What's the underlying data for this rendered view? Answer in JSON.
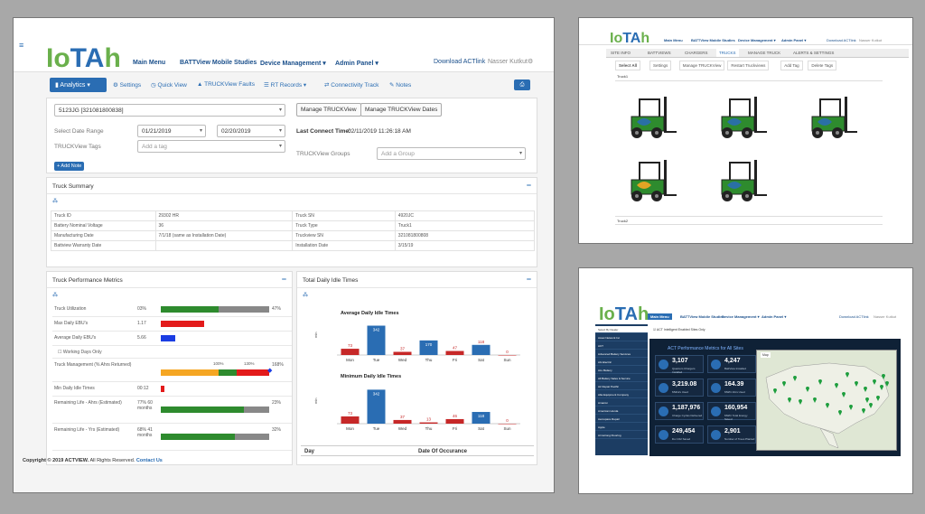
{
  "main": {
    "logo": {
      "text1": "Io",
      "text2": "TA",
      "text3": "h"
    },
    "nav": [
      "Main Menu",
      "BATTView Mobile Studies",
      "Device Management ▾",
      "Admin Panel ▾"
    ],
    "download_link": "Download ACTlink",
    "user": "Nasser Kutkut",
    "tabs": {
      "analytics": "Analytics ▾",
      "settings": "Settings",
      "quick_view": "Quick View",
      "faults": "TRUCKView Faults",
      "rt_records": "RT Records ▾",
      "connectivity": "Connectivity Track",
      "notes": "Notes"
    },
    "form": {
      "truck_select": "5123JG [321081800838]",
      "manage_truckview": "Manage TRUCKView",
      "manage_dates": "Manage TRUCKView Dates",
      "date_range_label": "Select Date Range",
      "date_from": "01/21/2019",
      "date_to": "02/20/2019",
      "last_connect_label": "Last Connect Time:",
      "last_connect_value": "02/11/2019 11:26:18 AM",
      "tags_label": "TRUCKView Tags",
      "tags_placeholder": "Add a tag",
      "groups_label": "TRUCKView Groups",
      "groups_placeholder": "Add a Group",
      "add_note": "+ Add Note"
    },
    "summary": {
      "title": "Truck Summary",
      "rows": [
        [
          "Truck ID",
          "29302 HR",
          "Truck SN",
          "4920JC"
        ],
        [
          "Battery Nominal Voltage",
          "36",
          "Truck Type",
          "Truck1"
        ],
        [
          "Manufacturing Date",
          "7/1/18 (same as Installation Date)",
          "Truckview SN",
          "321081800808"
        ],
        [
          "Battview Warranty Date",
          "",
          "Installation Date",
          "3/15/19"
        ]
      ]
    },
    "metrics": {
      "title": "Truck Performance Metrics",
      "rows": [
        {
          "label": "Truck Utilization",
          "value": "03%",
          "pct": "47%"
        },
        {
          "label": "Max Daily EBU's",
          "value": "1.17",
          "pct": ""
        },
        {
          "label": "Average Daily EBU's",
          "value": "5.66",
          "pct": ""
        },
        {
          "label": "Working Days Only",
          "value": "",
          "pct": ""
        },
        {
          "label": "Truck Management (% Ahrs Returned)",
          "value": "",
          "pct": "168%",
          "mark1": "100%",
          "mark2": "130%"
        },
        {
          "label": "Min Daily Idle Times",
          "value": "00:12",
          "pct": ""
        },
        {
          "label": "Remaining Life - Ahrs (Estimated)",
          "value": "77% 60 months",
          "pct": "23%"
        },
        {
          "label": "Remaining Life - Yrs (Estimated)",
          "value": "68% 41 months",
          "pct": "32%"
        }
      ]
    },
    "idle": {
      "title": "Total Daily Idle Times",
      "table_headers": [
        "Day",
        "Date Of Occurance"
      ]
    },
    "footer": {
      "copyright": "Copyright © 2019 ACTVIEW.",
      "rights": "All Rights Reserved.",
      "contact": "Contact Us"
    }
  },
  "chart_data": [
    {
      "type": "bar",
      "title": "Average Daily Idle Times",
      "ylabel": "min",
      "categories": [
        "Mon",
        "Tue",
        "Wed",
        "Thu",
        "Fri",
        "Sat",
        "Sun"
      ],
      "values": [
        73,
        342,
        37,
        170,
        47,
        118,
        0
      ]
    },
    {
      "type": "bar",
      "title": "Minimum Daily Idle Times",
      "ylabel": "min",
      "categories": [
        "Mon",
        "Tue",
        "Wed",
        "Thu",
        "Fri",
        "Sat",
        "Sun"
      ],
      "values": [
        73,
        342,
        37,
        13,
        46,
        118,
        0
      ]
    }
  ],
  "trucks_view": {
    "nav": [
      "Main Menu",
      "BATTView Mobile Studies",
      "Device Management ▾",
      "Admin Panel ▾"
    ],
    "download_link": "Download ACTlink",
    "user": "Nasser Kutkut",
    "tabs": [
      "SITE INFO",
      "BATTVIEWS",
      "CHARGERS",
      "TRUCKS",
      "MANAGE TRUCK",
      "ALERTS & SETTINGS"
    ],
    "subtabs": [
      "Select All",
      "Settings",
      "Manage TRUCKView",
      "Restart Truckviews",
      "Add Tag",
      "Delete Tags"
    ],
    "group1": "Truck1",
    "group2": "Truck2"
  },
  "dash_view": {
    "nav": [
      "Main Menu",
      "BATTView Mobile Studies",
      "Device Management ▾",
      "Admin Panel ▾"
    ],
    "download_link": "Download ACTlink",
    "user": "Nasser Kutkut",
    "check_label": "ACT Intelligent Enabled Sites Only",
    "perf_title": "ACT Performance Metrics for All Sites",
    "tiles": [
      {
        "n": "3,107",
        "d": "Quantum Chargers Installed"
      },
      {
        "n": "4,247",
        "d": "BattView Installed"
      },
      {
        "n": "3,219.08",
        "d": "MWHrs Used"
      },
      {
        "n": "164.39",
        "d": "MWhr Ahrs Used"
      },
      {
        "n": "1,187,976",
        "d": "Charge Cycles Delivered"
      },
      {
        "n": "160,954",
        "d": "MWhr Total Energy Saved"
      },
      {
        "n": "249,454",
        "d": "lbs CO2 Saved"
      },
      {
        "n": "2,901",
        "d": "Number of Trees Planted"
      }
    ],
    "sidebar": [
      "Select By Dealer",
      "Asset Network Inc",
      "ACT",
      "Advanced Battery Services",
      "AG Electric",
      "ALL Battery",
      "All Battery Sales & Service",
      "Air Repair Pacific",
      "Alta Equipment Company",
      "Amazon",
      "American Honda",
      "Aerospace Repair",
      "Apple",
      "Armstrong Flooring"
    ],
    "map_tab": "Map"
  }
}
